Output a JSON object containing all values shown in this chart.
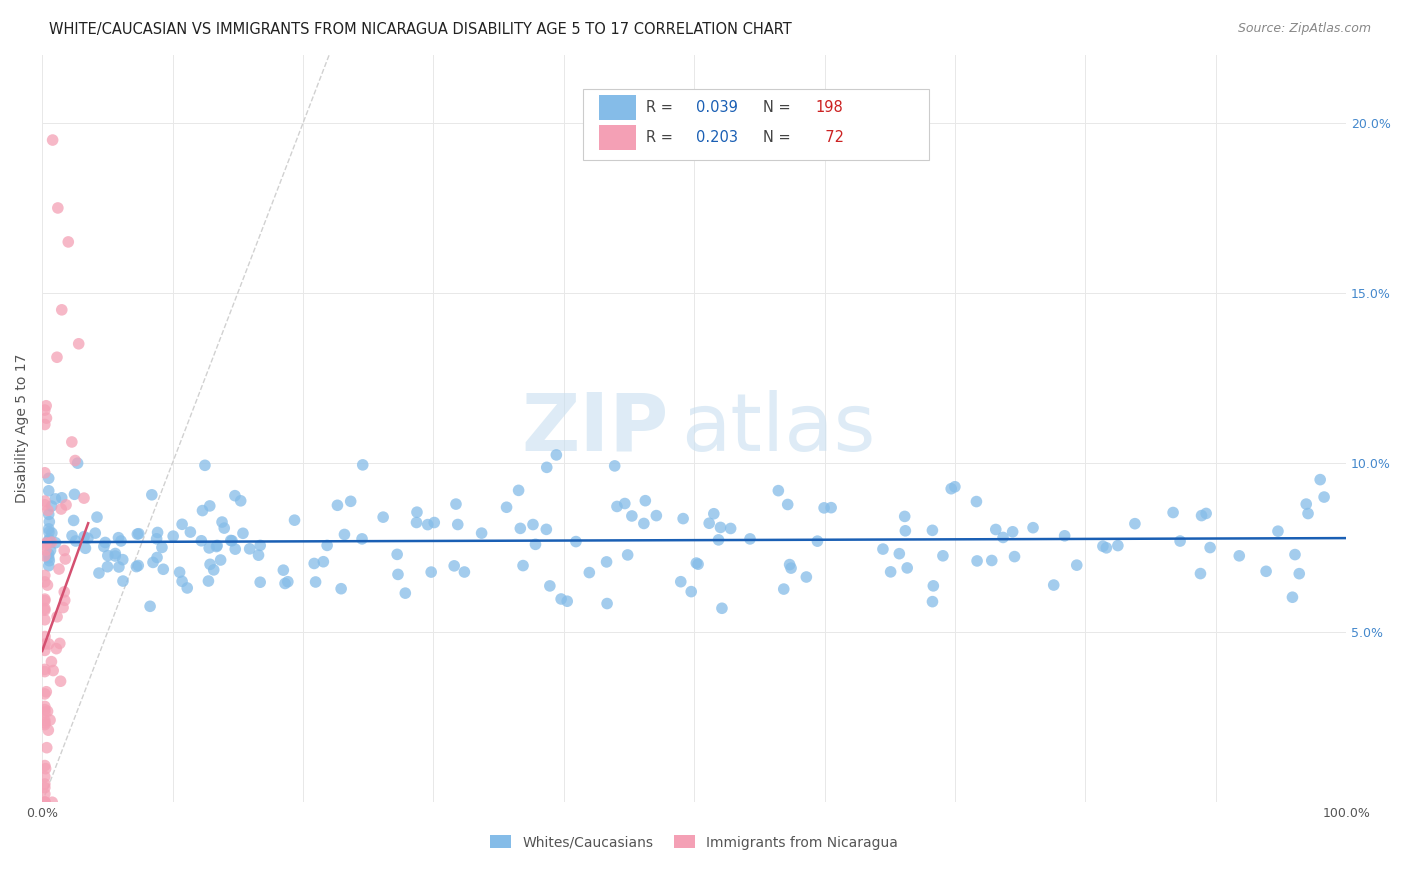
{
  "title": "WHITE/CAUCASIAN VS IMMIGRANTS FROM NICARAGUA DISABILITY AGE 5 TO 17 CORRELATION CHART",
  "source": "Source: ZipAtlas.com",
  "ylabel": "Disability Age 5 to 17",
  "xlim": [
    0,
    1.0
  ],
  "ylim": [
    0,
    0.22
  ],
  "xtick_positions": [
    0.0,
    0.1,
    0.2,
    0.3,
    0.4,
    0.5,
    0.6,
    0.7,
    0.8,
    0.9,
    1.0
  ],
  "xticklabels": [
    "0.0%",
    "",
    "",
    "",
    "",
    "",
    "",
    "",
    "",
    "",
    "100.0%"
  ],
  "ytick_positions": [
    0.0,
    0.05,
    0.1,
    0.15,
    0.2
  ],
  "yticklabels_right": [
    "",
    "5.0%",
    "10.0%",
    "15.0%",
    "20.0%"
  ],
  "blue_R": 0.039,
  "blue_N": 198,
  "pink_R": 0.203,
  "pink_N": 72,
  "blue_color": "#85bce8",
  "pink_color": "#f4a0b5",
  "blue_line_color": "#1a5fb4",
  "pink_line_color": "#d45070",
  "diagonal_color": "#cccccc",
  "watermark_zip": "ZIP",
  "watermark_atlas": "atlas",
  "legend_blue_label": "Whites/Caucasians",
  "legend_pink_label": "Immigrants from Nicaragua",
  "grid_color": "#e8e8e8",
  "title_color": "#222222",
  "source_color": "#888888",
  "ylabel_color": "#555555",
  "tick_label_color": "#555555",
  "right_tick_color": "#4488cc"
}
